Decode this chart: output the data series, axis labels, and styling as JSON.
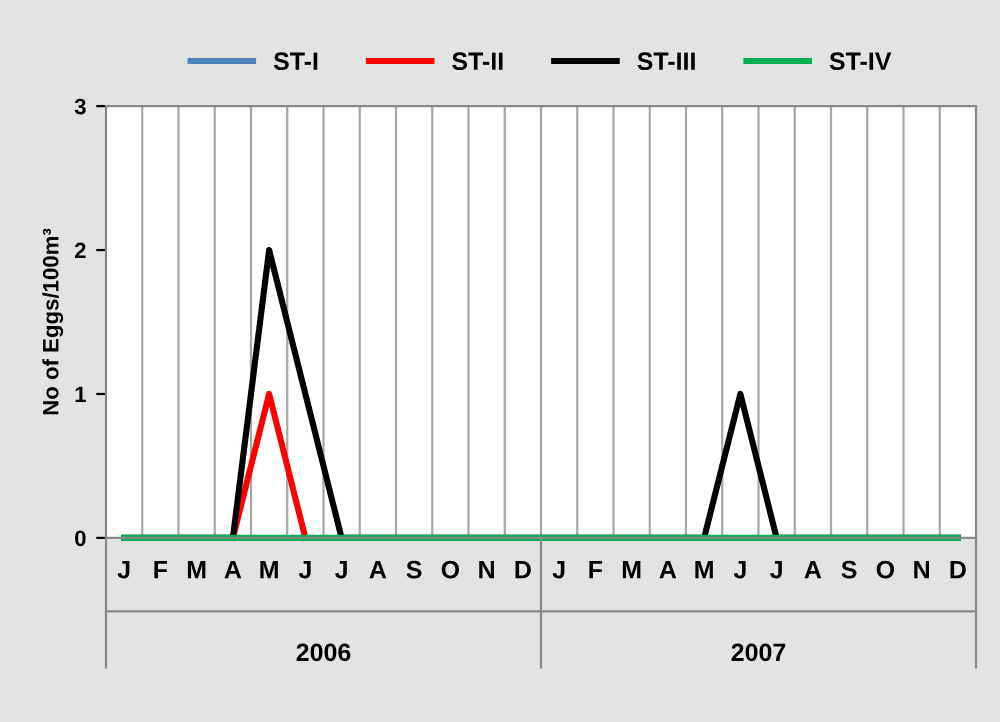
{
  "chart_data": {
    "type": "line",
    "categories": [
      "J",
      "F",
      "M",
      "A",
      "M",
      "J",
      "J",
      "A",
      "S",
      "O",
      "N",
      "D",
      "J",
      "F",
      "M",
      "A",
      "M",
      "J",
      "J",
      "A",
      "S",
      "O",
      "N",
      "D"
    ],
    "series": [
      {
        "name": "ST-I",
        "color": "#4f81bd",
        "values": [
          null,
          null,
          null,
          null,
          null,
          null,
          null,
          null,
          null,
          null,
          null,
          null,
          null,
          null,
          null,
          null,
          null,
          null,
          null,
          null,
          null,
          null,
          null,
          null
        ]
      },
      {
        "name": "ST-II",
        "color": "#ff0000",
        "values": [
          null,
          null,
          null,
          0,
          1,
          0,
          null,
          null,
          null,
          null,
          null,
          null,
          null,
          null,
          null,
          null,
          null,
          null,
          null,
          null,
          null,
          null,
          null,
          null
        ]
      },
      {
        "name": "ST-III",
        "color": "#000000",
        "values": [
          0,
          0,
          0,
          0,
          2,
          1,
          0,
          0,
          0,
          0,
          0,
          0,
          0,
          0,
          0,
          0,
          0,
          1,
          0,
          0,
          0,
          0,
          0,
          0
        ]
      },
      {
        "name": "ST-IV",
        "color": "#00b050",
        "values": [
          0,
          0,
          0,
          0,
          0,
          0,
          0,
          0,
          0,
          0,
          0,
          0,
          0,
          0,
          0,
          0,
          0,
          0,
          0,
          0,
          0,
          0,
          0,
          0
        ]
      }
    ],
    "ylabel": "No of Eggs/100m³",
    "ylim": [
      0,
      3
    ],
    "yticks": [
      0,
      1,
      2,
      3
    ],
    "annotations": [
      "2006",
      "2007"
    ],
    "grid": "x",
    "legend": "top",
    "marker": "none",
    "line_style": "solid"
  }
}
